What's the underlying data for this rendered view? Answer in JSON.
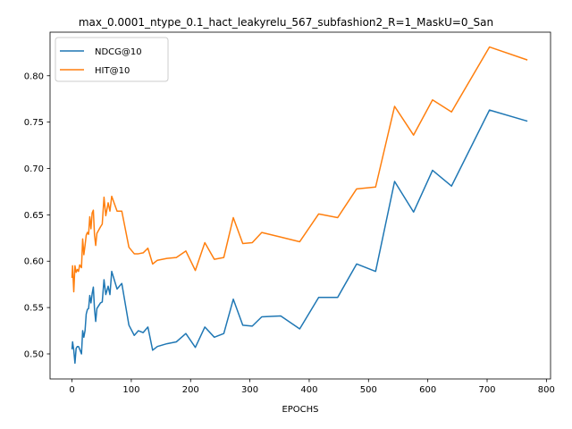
{
  "chart_data": {
    "type": "line",
    "title": "max_0.0001_ntype_0.1_hact_leakyrelu_567_subfashion2_R=1_MaskU=0_San",
    "xlabel": "EPOCHS",
    "ylabel": "",
    "xlim": [
      -37,
      807
    ],
    "ylim": [
      0.473,
      0.847
    ],
    "xticks": [
      0,
      100,
      200,
      300,
      400,
      500,
      600,
      700,
      800
    ],
    "yticks": [
      0.5,
      0.55,
      0.6,
      0.65,
      0.7,
      0.75,
      0.8
    ],
    "legend": "top-left",
    "grid": false,
    "series": [
      {
        "name": "NDCG@10",
        "color": "#1f77b4",
        "points": [
          [
            0,
            0.505
          ],
          [
            1,
            0.513
          ],
          [
            3,
            0.504
          ],
          [
            5,
            0.49
          ],
          [
            7,
            0.506
          ],
          [
            9,
            0.508
          ],
          [
            11,
            0.508
          ],
          [
            13,
            0.505
          ],
          [
            16,
            0.5
          ],
          [
            18,
            0.525
          ],
          [
            20,
            0.518
          ],
          [
            22,
            0.525
          ],
          [
            24,
            0.543
          ],
          [
            26,
            0.548
          ],
          [
            28,
            0.549
          ],
          [
            30,
            0.563
          ],
          [
            32,
            0.555
          ],
          [
            34,
            0.565
          ],
          [
            36,
            0.572
          ],
          [
            38,
            0.548
          ],
          [
            40,
            0.535
          ],
          [
            42,
            0.549
          ],
          [
            48,
            0.555
          ],
          [
            51,
            0.556
          ],
          [
            54,
            0.58
          ],
          [
            57,
            0.564
          ],
          [
            61,
            0.573
          ],
          [
            64,
            0.564
          ],
          [
            67,
            0.589
          ],
          [
            76,
            0.57
          ],
          [
            84,
            0.576
          ],
          [
            96,
            0.531
          ],
          [
            105,
            0.52
          ],
          [
            112,
            0.525
          ],
          [
            120,
            0.523
          ],
          [
            128,
            0.529
          ],
          [
            136,
            0.504
          ],
          [
            144,
            0.508
          ],
          [
            160,
            0.511
          ],
          [
            176,
            0.513
          ],
          [
            192,
            0.522
          ],
          [
            208,
            0.507
          ],
          [
            224,
            0.529
          ],
          [
            240,
            0.518
          ],
          [
            256,
            0.522
          ],
          [
            272,
            0.559
          ],
          [
            288,
            0.531
          ],
          [
            304,
            0.53
          ],
          [
            320,
            0.54
          ],
          [
            352,
            0.541
          ],
          [
            384,
            0.527
          ],
          [
            416,
            0.561
          ],
          [
            448,
            0.561
          ],
          [
            480,
            0.597
          ],
          [
            512,
            0.589
          ],
          [
            544,
            0.686
          ],
          [
            576,
            0.653
          ],
          [
            608,
            0.698
          ],
          [
            640,
            0.681
          ],
          [
            704,
            0.763
          ],
          [
            768,
            0.751
          ]
        ]
      },
      {
        "name": "HIT@10",
        "color": "#ff7f0e",
        "points": [
          [
            0,
            0.582
          ],
          [
            1,
            0.595
          ],
          [
            3,
            0.567
          ],
          [
            5,
            0.595
          ],
          [
            7,
            0.588
          ],
          [
            9,
            0.591
          ],
          [
            11,
            0.589
          ],
          [
            13,
            0.596
          ],
          [
            16,
            0.593
          ],
          [
            18,
            0.624
          ],
          [
            20,
            0.607
          ],
          [
            22,
            0.617
          ],
          [
            24,
            0.628
          ],
          [
            26,
            0.631
          ],
          [
            28,
            0.629
          ],
          [
            30,
            0.648
          ],
          [
            32,
            0.635
          ],
          [
            34,
            0.652
          ],
          [
            36,
            0.655
          ],
          [
            38,
            0.628
          ],
          [
            40,
            0.617
          ],
          [
            42,
            0.63
          ],
          [
            48,
            0.637
          ],
          [
            51,
            0.64
          ],
          [
            54,
            0.669
          ],
          [
            57,
            0.649
          ],
          [
            61,
            0.663
          ],
          [
            64,
            0.654
          ],
          [
            67,
            0.67
          ],
          [
            76,
            0.654
          ],
          [
            84,
            0.654
          ],
          [
            96,
            0.615
          ],
          [
            105,
            0.608
          ],
          [
            112,
            0.608
          ],
          [
            120,
            0.609
          ],
          [
            128,
            0.614
          ],
          [
            136,
            0.597
          ],
          [
            144,
            0.601
          ],
          [
            160,
            0.603
          ],
          [
            176,
            0.604
          ],
          [
            192,
            0.611
          ],
          [
            208,
            0.59
          ],
          [
            224,
            0.62
          ],
          [
            240,
            0.602
          ],
          [
            256,
            0.604
          ],
          [
            272,
            0.647
          ],
          [
            288,
            0.619
          ],
          [
            304,
            0.62
          ],
          [
            320,
            0.631
          ],
          [
            352,
            0.626
          ],
          [
            384,
            0.621
          ],
          [
            416,
            0.651
          ],
          [
            448,
            0.647
          ],
          [
            480,
            0.678
          ],
          [
            512,
            0.68
          ],
          [
            544,
            0.767
          ],
          [
            576,
            0.736
          ],
          [
            608,
            0.774
          ],
          [
            640,
            0.761
          ],
          [
            704,
            0.831
          ],
          [
            768,
            0.817
          ]
        ]
      }
    ]
  }
}
